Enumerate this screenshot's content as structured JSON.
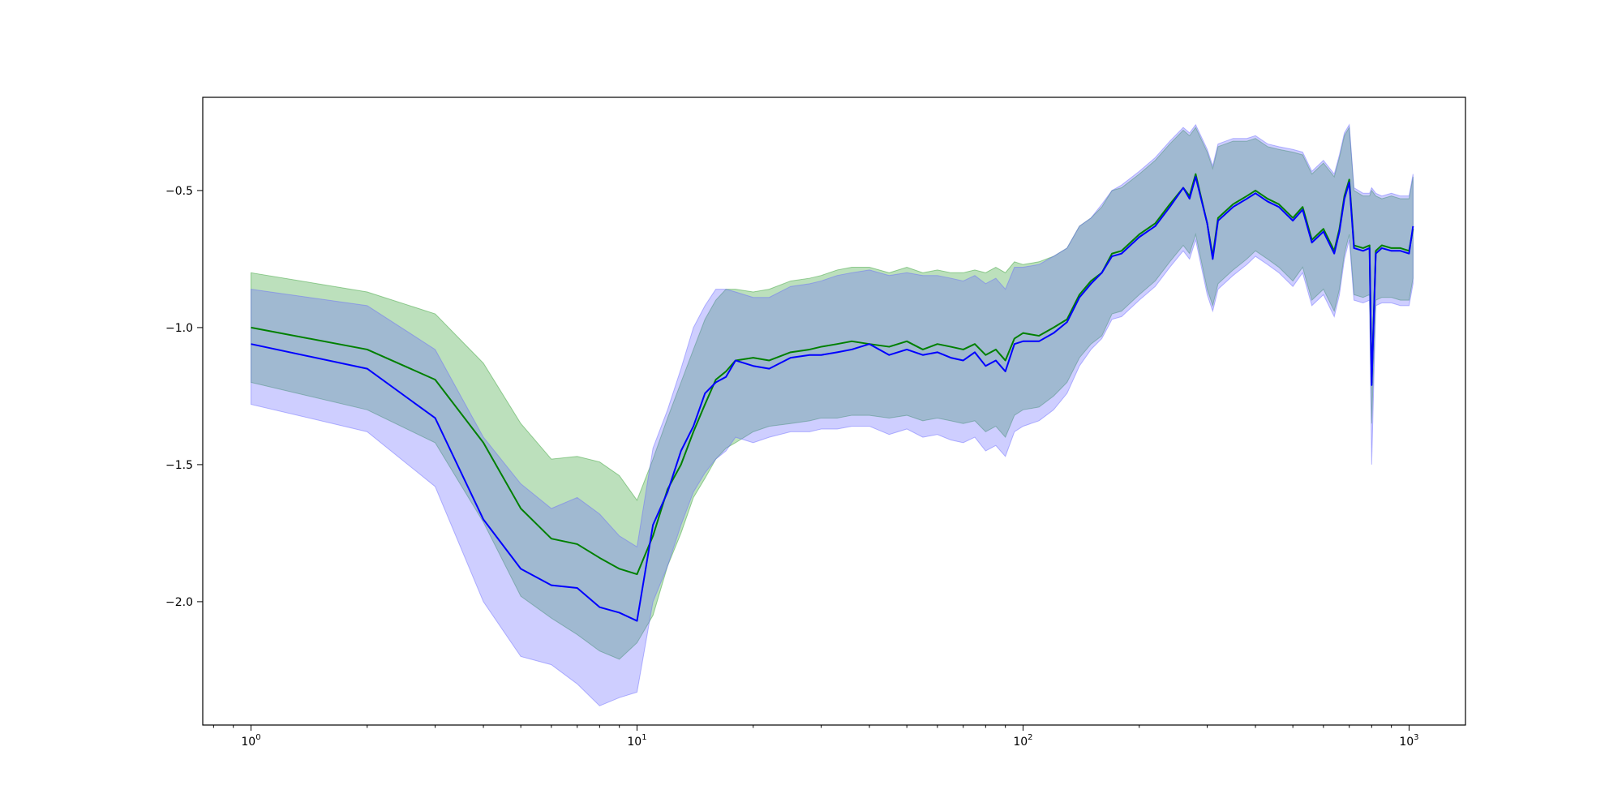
{
  "chart_data": {
    "type": "line",
    "title": "",
    "xlabel": "",
    "ylabel": "",
    "xscale": "log",
    "xlim": [
      0.75,
      1400
    ],
    "ylim": [
      -2.45,
      -0.16
    ],
    "grid": false,
    "legend": "none",
    "x_ticks": [
      {
        "value": 1,
        "base": "10",
        "exp": "0"
      },
      {
        "value": 10,
        "base": "10",
        "exp": "1"
      },
      {
        "value": 100,
        "base": "10",
        "exp": "2"
      },
      {
        "value": 1000,
        "base": "10",
        "exp": "3"
      }
    ],
    "y_ticks": [
      {
        "value": -0.5,
        "label": "−0.5"
      },
      {
        "value": -1.0,
        "label": "−1.0"
      },
      {
        "value": -1.5,
        "label": "−1.5"
      },
      {
        "value": -2.0,
        "label": "−2.0"
      }
    ],
    "x": [
      1,
      2,
      3,
      4,
      5,
      6,
      7,
      8,
      9,
      10,
      11,
      12,
      13,
      14,
      15,
      16,
      17,
      18,
      20,
      22,
      25,
      28,
      30,
      33,
      36,
      40,
      45,
      50,
      55,
      60,
      65,
      70,
      75,
      80,
      85,
      90,
      95,
      100,
      110,
      120,
      130,
      140,
      150,
      160,
      170,
      180,
      200,
      220,
      240,
      260,
      270,
      280,
      300,
      310,
      320,
      350,
      380,
      400,
      430,
      460,
      500,
      530,
      560,
      600,
      640,
      660,
      680,
      700,
      720,
      760,
      790,
      800,
      820,
      850,
      900,
      950,
      1000,
      1024
    ],
    "series": [
      {
        "color": "#008000",
        "band_color": "#2e9e2e",
        "mean": [
          -1.0,
          -1.08,
          -1.19,
          -1.42,
          -1.66,
          -1.77,
          -1.79,
          -1.84,
          -1.88,
          -1.9,
          -1.76,
          -1.59,
          -1.5,
          -1.38,
          -1.28,
          -1.19,
          -1.16,
          -1.12,
          -1.11,
          -1.12,
          -1.09,
          -1.08,
          -1.07,
          -1.06,
          -1.05,
          -1.06,
          -1.07,
          -1.05,
          -1.08,
          -1.06,
          -1.07,
          -1.08,
          -1.06,
          -1.1,
          -1.08,
          -1.12,
          -1.04,
          -1.02,
          -1.03,
          -1.0,
          -0.97,
          -0.88,
          -0.83,
          -0.8,
          -0.73,
          -0.72,
          -0.66,
          -0.62,
          -0.55,
          -0.49,
          -0.52,
          -0.44,
          -0.62,
          -0.74,
          -0.6,
          -0.55,
          -0.52,
          -0.5,
          -0.53,
          -0.55,
          -0.6,
          -0.56,
          -0.68,
          -0.64,
          -0.72,
          -0.64,
          -0.52,
          -0.46,
          -0.7,
          -0.71,
          -0.7,
          -1.2,
          -0.72,
          -0.7,
          -0.71,
          -0.71,
          -0.72,
          -0.64
        ],
        "upper": [
          -0.8,
          -0.87,
          -0.95,
          -1.13,
          -1.35,
          -1.48,
          -1.47,
          -1.49,
          -1.54,
          -1.63,
          -1.48,
          -1.33,
          -1.2,
          -1.08,
          -0.97,
          -0.9,
          -0.86,
          -0.86,
          -0.87,
          -0.86,
          -0.83,
          -0.82,
          -0.81,
          -0.79,
          -0.78,
          -0.78,
          -0.8,
          -0.78,
          -0.8,
          -0.79,
          -0.8,
          -0.8,
          -0.79,
          -0.8,
          -0.78,
          -0.8,
          -0.76,
          -0.77,
          -0.76,
          -0.74,
          -0.71,
          -0.63,
          -0.6,
          -0.56,
          -0.5,
          -0.49,
          -0.44,
          -0.39,
          -0.33,
          -0.28,
          -0.3,
          -0.27,
          -0.36,
          -0.42,
          -0.34,
          -0.32,
          -0.32,
          -0.31,
          -0.34,
          -0.35,
          -0.36,
          -0.37,
          -0.44,
          -0.4,
          -0.45,
          -0.38,
          -0.3,
          -0.27,
          -0.5,
          -0.52,
          -0.52,
          -0.5,
          -0.52,
          -0.53,
          -0.52,
          -0.53,
          -0.53,
          -0.45
        ],
        "lower": [
          -1.2,
          -1.3,
          -1.42,
          -1.71,
          -1.98,
          -2.06,
          -2.12,
          -2.18,
          -2.21,
          -2.15,
          -2.05,
          -1.87,
          -1.75,
          -1.62,
          -1.55,
          -1.48,
          -1.44,
          -1.42,
          -1.38,
          -1.36,
          -1.35,
          -1.34,
          -1.33,
          -1.33,
          -1.32,
          -1.32,
          -1.33,
          -1.32,
          -1.34,
          -1.33,
          -1.34,
          -1.35,
          -1.34,
          -1.38,
          -1.36,
          -1.4,
          -1.32,
          -1.3,
          -1.29,
          -1.25,
          -1.2,
          -1.11,
          -1.06,
          -1.03,
          -0.95,
          -0.94,
          -0.88,
          -0.83,
          -0.76,
          -0.7,
          -0.73,
          -0.66,
          -0.86,
          -0.92,
          -0.84,
          -0.79,
          -0.75,
          -0.72,
          -0.75,
          -0.78,
          -0.83,
          -0.78,
          -0.9,
          -0.86,
          -0.94,
          -0.86,
          -0.73,
          -0.66,
          -0.88,
          -0.89,
          -0.88,
          -1.35,
          -0.9,
          -0.89,
          -0.89,
          -0.9,
          -0.9,
          -0.82
        ]
      },
      {
        "color": "#0000ff",
        "band_color": "#6666ff",
        "mean": [
          -1.06,
          -1.15,
          -1.33,
          -1.7,
          -1.88,
          -1.94,
          -1.95,
          -2.02,
          -2.04,
          -2.07,
          -1.72,
          -1.6,
          -1.45,
          -1.36,
          -1.24,
          -1.2,
          -1.18,
          -1.12,
          -1.14,
          -1.15,
          -1.11,
          -1.1,
          -1.1,
          -1.09,
          -1.08,
          -1.06,
          -1.1,
          -1.08,
          -1.1,
          -1.09,
          -1.11,
          -1.12,
          -1.09,
          -1.14,
          -1.12,
          -1.16,
          -1.06,
          -1.05,
          -1.05,
          -1.02,
          -0.98,
          -0.89,
          -0.84,
          -0.8,
          -0.74,
          -0.73,
          -0.67,
          -0.63,
          -0.56,
          -0.49,
          -0.53,
          -0.45,
          -0.62,
          -0.75,
          -0.61,
          -0.56,
          -0.53,
          -0.51,
          -0.54,
          -0.56,
          -0.61,
          -0.57,
          -0.69,
          -0.65,
          -0.73,
          -0.65,
          -0.53,
          -0.47,
          -0.71,
          -0.72,
          -0.71,
          -1.21,
          -0.73,
          -0.71,
          -0.72,
          -0.72,
          -0.73,
          -0.63
        ],
        "upper": [
          -0.86,
          -0.92,
          -1.08,
          -1.4,
          -1.57,
          -1.66,
          -1.62,
          -1.68,
          -1.76,
          -1.8,
          -1.44,
          -1.3,
          -1.15,
          -1.0,
          -0.92,
          -0.86,
          -0.86,
          -0.87,
          -0.89,
          -0.89,
          -0.85,
          -0.84,
          -0.83,
          -0.81,
          -0.8,
          -0.79,
          -0.81,
          -0.8,
          -0.81,
          -0.81,
          -0.82,
          -0.83,
          -0.81,
          -0.84,
          -0.82,
          -0.86,
          -0.78,
          -0.78,
          -0.77,
          -0.74,
          -0.71,
          -0.63,
          -0.6,
          -0.55,
          -0.5,
          -0.48,
          -0.43,
          -0.38,
          -0.32,
          -0.27,
          -0.29,
          -0.26,
          -0.35,
          -0.41,
          -0.33,
          -0.31,
          -0.31,
          -0.3,
          -0.33,
          -0.34,
          -0.35,
          -0.36,
          -0.43,
          -0.39,
          -0.44,
          -0.37,
          -0.29,
          -0.26,
          -0.49,
          -0.51,
          -0.51,
          -0.49,
          -0.51,
          -0.52,
          -0.51,
          -0.52,
          -0.52,
          -0.44
        ],
        "lower": [
          -1.28,
          -1.38,
          -1.58,
          -2.0,
          -2.2,
          -2.23,
          -2.3,
          -2.38,
          -2.35,
          -2.33,
          -2.0,
          -1.87,
          -1.72,
          -1.6,
          -1.53,
          -1.48,
          -1.45,
          -1.4,
          -1.42,
          -1.4,
          -1.38,
          -1.38,
          -1.37,
          -1.37,
          -1.36,
          -1.36,
          -1.39,
          -1.37,
          -1.4,
          -1.39,
          -1.41,
          -1.42,
          -1.4,
          -1.45,
          -1.43,
          -1.47,
          -1.38,
          -1.36,
          -1.34,
          -1.3,
          -1.24,
          -1.14,
          -1.08,
          -1.04,
          -0.97,
          -0.96,
          -0.9,
          -0.85,
          -0.78,
          -0.72,
          -0.75,
          -0.68,
          -0.88,
          -0.94,
          -0.86,
          -0.81,
          -0.77,
          -0.74,
          -0.77,
          -0.8,
          -0.85,
          -0.8,
          -0.92,
          -0.88,
          -0.96,
          -0.88,
          -0.75,
          -0.68,
          -0.9,
          -0.91,
          -0.9,
          -1.5,
          -0.92,
          -0.91,
          -0.91,
          -0.92,
          -0.92,
          -0.84
        ]
      }
    ]
  }
}
